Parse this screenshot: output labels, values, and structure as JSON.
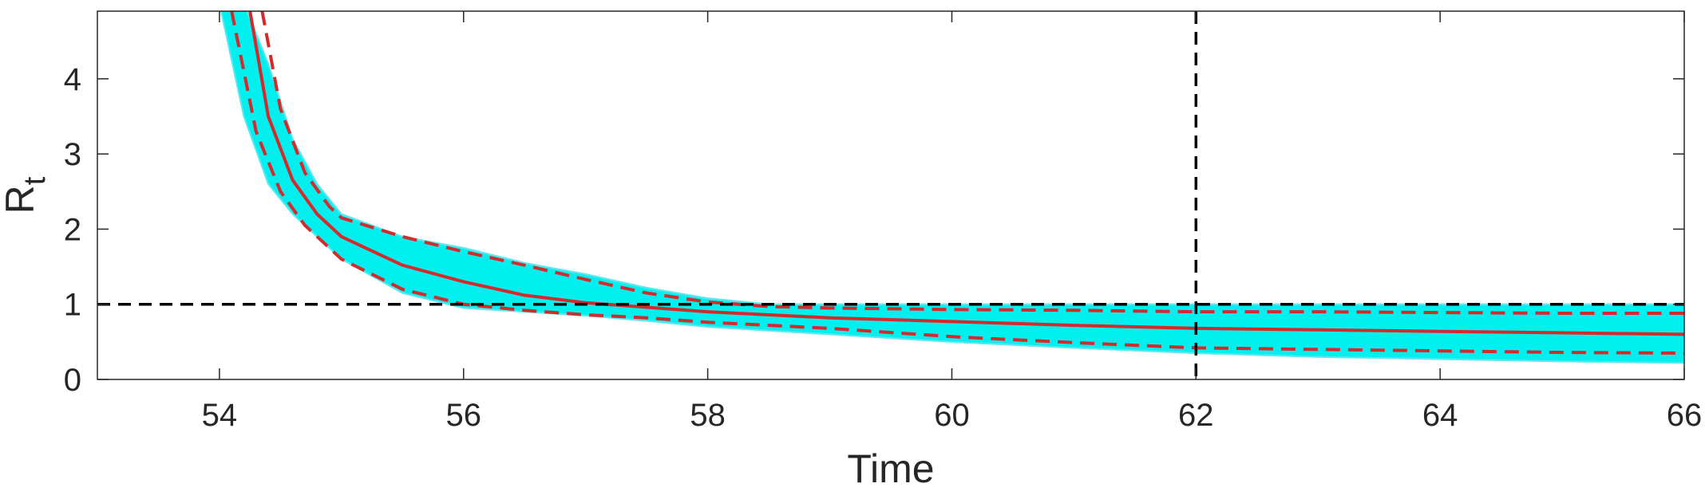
{
  "chart_data": {
    "type": "line",
    "xlabel": "Time",
    "ylabel": {
      "main": "R",
      "sub": "t"
    },
    "xlim": [
      53,
      66
    ],
    "ylim": [
      0,
      4.9
    ],
    "xticks": [
      54,
      56,
      58,
      60,
      62,
      64,
      66
    ],
    "yticks": [
      0,
      1,
      2,
      3,
      4
    ],
    "xtick_labels": [
      "54",
      "56",
      "58",
      "60",
      "62",
      "64",
      "66"
    ],
    "ytick_labels": [
      "0",
      "1",
      "2",
      "3",
      "4"
    ],
    "grid": false,
    "colors": {
      "band": "#00f0f0",
      "band_edge": "#5ee8ee",
      "median": "#d62a2a",
      "reference": "#000000",
      "axis": "#262626"
    },
    "reference_lines": {
      "horizontal_y": 1,
      "vertical_x": 62
    },
    "band": {
      "x": [
        54.0,
        54.2,
        54.4,
        54.6,
        54.8,
        55.0,
        55.5,
        56.0,
        56.5,
        57.0,
        57.5,
        58.0,
        58.5,
        59.0,
        60.0,
        61.0,
        62.0,
        63.0,
        64.0,
        65.0,
        66.0
      ],
      "upper": [
        5.0,
        5.0,
        4.2,
        3.2,
        2.6,
        2.2,
        1.9,
        1.75,
        1.55,
        1.4,
        1.22,
        1.08,
        1.0,
        1.0,
        1.0,
        1.0,
        1.0,
        1.0,
        1.0,
        1.0,
        1.0
      ],
      "lower": [
        5.0,
        3.5,
        2.6,
        2.2,
        1.9,
        1.6,
        1.15,
        0.95,
        0.9,
        0.85,
        0.78,
        0.7,
        0.65,
        0.6,
        0.5,
        0.42,
        0.35,
        0.3,
        0.27,
        0.24,
        0.22
      ]
    },
    "series": [
      {
        "style": "solid",
        "x": [
          54.25,
          54.4,
          54.6,
          54.8,
          55.0,
          55.5,
          56.0,
          56.5,
          57.0,
          57.5,
          58.0,
          59.0,
          60.0,
          61.0,
          62.0,
          63.0,
          64.0,
          65.0,
          66.0
        ],
        "y": [
          4.9,
          3.5,
          2.65,
          2.2,
          1.9,
          1.52,
          1.3,
          1.12,
          1.02,
          0.96,
          0.9,
          0.82,
          0.77,
          0.72,
          0.68,
          0.66,
          0.64,
          0.62,
          0.6
        ]
      },
      {
        "style": "dashed",
        "x": [
          54.35,
          54.5,
          54.7,
          54.9,
          55.0,
          55.5,
          56.0,
          56.5,
          57.0,
          57.5,
          58.0,
          58.5,
          59.0,
          60.0,
          61.0,
          62.0,
          63.0,
          64.0,
          65.0,
          66.0
        ],
        "y": [
          4.9,
          3.6,
          2.75,
          2.3,
          2.15,
          1.9,
          1.7,
          1.52,
          1.33,
          1.15,
          1.03,
          0.97,
          0.95,
          0.93,
          0.92,
          0.9,
          0.9,
          0.89,
          0.88,
          0.88
        ]
      },
      {
        "style": "dashed",
        "x": [
          54.1,
          54.3,
          54.5,
          54.7,
          55.0,
          55.5,
          56.0,
          56.5,
          57.0,
          57.5,
          58.0,
          59.0,
          60.0,
          61.0,
          62.0,
          63.0,
          64.0,
          65.0,
          66.0
        ],
        "y": [
          4.9,
          3.3,
          2.5,
          2.05,
          1.6,
          1.2,
          1.0,
          0.92,
          0.86,
          0.82,
          0.76,
          0.68,
          0.57,
          0.49,
          0.42,
          0.4,
          0.38,
          0.36,
          0.35
        ]
      }
    ]
  }
}
